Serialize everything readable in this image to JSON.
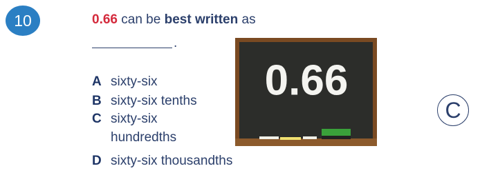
{
  "question": {
    "number": "10",
    "parts": [
      "0.66",
      " can be ",
      "best written",
      " as"
    ],
    "blank_end": "."
  },
  "options": [
    {
      "letter": "A",
      "text": "sixty-six"
    },
    {
      "letter": "B",
      "text": "sixty-six tenths"
    },
    {
      "letter": "C",
      "text": "sixty-six hundredths"
    },
    {
      "letter": "D",
      "text": "sixty-six thousandths"
    }
  ],
  "chalkboard": "0.66",
  "answer": "C"
}
